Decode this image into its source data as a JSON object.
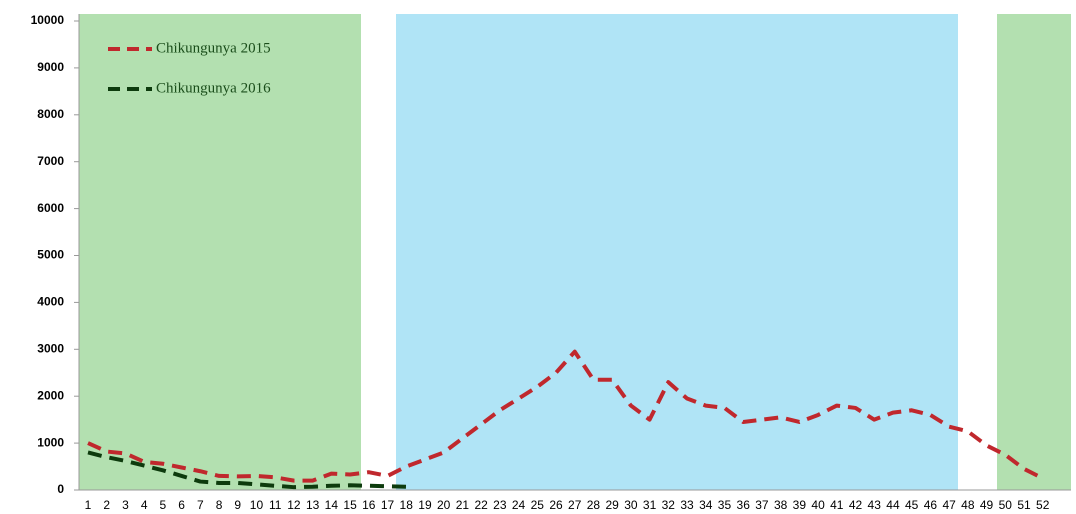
{
  "chart_data": {
    "type": "line",
    "categories": [
      "1",
      "2",
      "3",
      "4",
      "5",
      "6",
      "7",
      "8",
      "9",
      "10",
      "11",
      "12",
      "13",
      "14",
      "15",
      "16",
      "17",
      "18",
      "19",
      "20",
      "21",
      "22",
      "23",
      "24",
      "25",
      "26",
      "27",
      "28",
      "29",
      "30",
      "31",
      "32",
      "33",
      "34",
      "35",
      "36",
      "37",
      "38",
      "39",
      "40",
      "41",
      "42",
      "43",
      "44",
      "45",
      "46",
      "47",
      "48",
      "49",
      "50",
      "51",
      "52"
    ],
    "series": [
      {
        "name": "Chikungunya 2015",
        "color": "#c0282d",
        "values": [
          1000,
          820,
          780,
          600,
          560,
          480,
          400,
          300,
          290,
          300,
          270,
          200,
          200,
          350,
          330,
          380,
          300,
          500,
          650,
          800,
          1100,
          1400,
          1700,
          1950,
          2200,
          2500,
          2950,
          2350,
          2350,
          1800,
          1500,
          2300,
          1950,
          1800,
          1750,
          1450,
          1500,
          1550,
          1450,
          1600,
          1800,
          1750,
          1500,
          1650,
          1700,
          1600,
          1350,
          1250,
          950,
          750,
          450,
          250
        ]
      },
      {
        "name": "Chikungunya 2016",
        "color": "#0d3b0d",
        "values": [
          800,
          700,
          620,
          520,
          420,
          300,
          180,
          150,
          150,
          120,
          90,
          60,
          70,
          90,
          100,
          90,
          80,
          70,
          null,
          null,
          null,
          null,
          null,
          null,
          null,
          null,
          null,
          null,
          null,
          null,
          null,
          null,
          null,
          null,
          null,
          null,
          null,
          null,
          null,
          null,
          null,
          null,
          null,
          null,
          null,
          null,
          null,
          null,
          null,
          null,
          null,
          null
        ]
      }
    ],
    "ylim": [
      0,
      10000
    ],
    "yticks": [
      0,
      1000,
      2000,
      3000,
      4000,
      5000,
      6000,
      7000,
      8000,
      9000,
      10000
    ]
  }
}
